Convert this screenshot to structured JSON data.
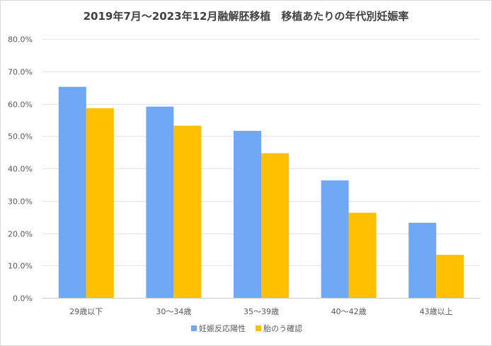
{
  "chart_data": {
    "type": "bar",
    "title": "2019年7月～2023年12月融解胚移植　移植あたりの年代別妊娠率",
    "categories": [
      "29歳以下",
      "30～34歳",
      "35～39歳",
      "40～42歳",
      "43歳以上"
    ],
    "series": [
      {
        "name": "妊娠反応陽性",
        "color": "#6fa8f5",
        "values": [
          65.2,
          59.1,
          51.6,
          36.3,
          23.2
        ]
      },
      {
        "name": "胎のう確認",
        "color": "#ffc000",
        "values": [
          58.6,
          53.2,
          44.7,
          26.3,
          13.3
        ]
      }
    ],
    "ylim": [
      0,
      80
    ],
    "yticks": [
      "0.0%",
      "10.0%",
      "20.0%",
      "30.0%",
      "40.0%",
      "50.0%",
      "60.0%",
      "70.0%",
      "80.0%"
    ],
    "grid": true,
    "legend": "bottom"
  }
}
